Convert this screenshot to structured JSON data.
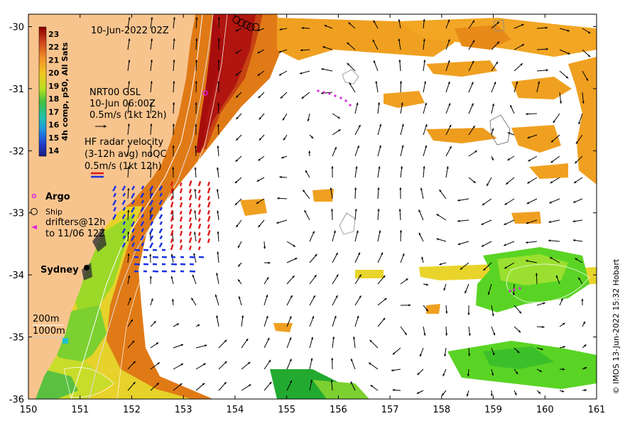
{
  "chart_data": {
    "type": "map",
    "title": "10-Jun-2022 02Z",
    "x_ticks": [
      "150",
      "151",
      "152",
      "153",
      "154",
      "155",
      "156",
      "157",
      "158",
      "159",
      "160",
      "161"
    ],
    "y_ticks": [
      "-30",
      "-31",
      "-32",
      "-33",
      "-34",
      "-35",
      "-36"
    ],
    "xlim": [
      150,
      161
    ],
    "ylim": [
      -36,
      -29.8
    ],
    "colorbar": {
      "label": "4h comp, p50, All Sats",
      "ticks": [
        "23",
        "22",
        "21",
        "20",
        "19",
        "18",
        "17",
        "16",
        "15",
        "14"
      ]
    },
    "legend": {
      "gsl_line1": "NRT00 GSL",
      "gsl_line2": "10-Jun 06:00Z",
      "gsl_line3": "0.5m/s (1kt 12h)",
      "hf_line1": "HF radar velocity",
      "hf_line2": "(3-12h avg) noQC",
      "hf_line3": "0.5m/s (1kt 12h)",
      "argo": "Argo",
      "ship": "Ship",
      "drifters_line1": "drifters@12h",
      "drifters_line2": "to 11/06 12Z",
      "city": "Sydney",
      "depth_200": "200m",
      "depth_1000": "1000m"
    },
    "copyright": "© IMOS 13-Jun-2022 15:32 Hobart",
    "colors": {
      "land": "#f8c48e",
      "warm_core": "#a80d0d",
      "current": "#e07010",
      "orange": "#f0a020",
      "yellow": "#f2d020",
      "green": "#5ad424",
      "dark_green": "#22aa30",
      "hf_red": "#e01818",
      "hf_blue": "#1830e0",
      "argo": "#e020e0"
    }
  }
}
